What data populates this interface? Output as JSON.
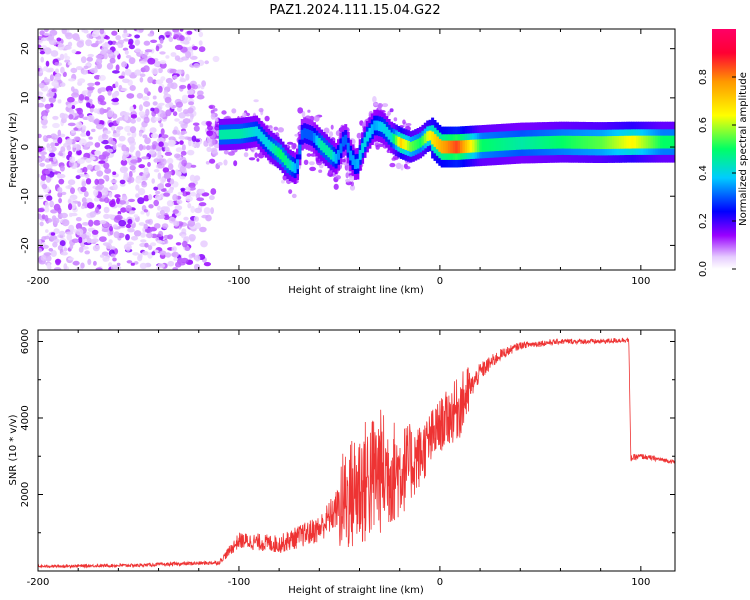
{
  "title": "PAZ1.2024.111.15.04.G22",
  "chart_data": [
    {
      "type": "heatmap",
      "xlabel": "Height of straight line (km)",
      "ylabel": "Frequency (Hz)",
      "xlim": [
        -200,
        117
      ],
      "ylim": [
        -25,
        24
      ],
      "x_ticks": [
        -200,
        -100,
        0,
        100
      ],
      "x_tick_labels": [
        "-200",
        "-100",
        "0",
        "100"
      ],
      "y_ticks": [
        -20,
        -10,
        0,
        10,
        20
      ],
      "y_tick_labels": [
        "-20",
        "-10",
        "0",
        "10",
        "20"
      ],
      "colorbar": {
        "label": "Normalized spectral amplitude",
        "range": [
          0,
          1
        ],
        "ticks": [
          0.0,
          0.2,
          0.4,
          0.6,
          0.8
        ],
        "tick_labels": [
          "0.0",
          "0.2",
          "0.4",
          "0.6",
          "0.8"
        ],
        "colormap": [
          "#ffffff",
          "#e6ccff",
          "#9900ff",
          "#0000ff",
          "#00ccff",
          "#00ff66",
          "#ffff00",
          "#ff9900",
          "#ff0033",
          "#ff0066"
        ]
      },
      "ridge": [
        {
          "x": -110,
          "y": 2.5,
          "amp": 0.45
        },
        {
          "x": -100,
          "y": 2.7,
          "amp": 0.45
        },
        {
          "x": -92,
          "y": 3.2,
          "amp": 0.4
        },
        {
          "x": -86,
          "y": 0.5,
          "amp": 0.4
        },
        {
          "x": -80,
          "y": -1.5,
          "amp": 0.5
        },
        {
          "x": -76,
          "y": -3.5,
          "amp": 0.45
        },
        {
          "x": -72,
          "y": -4.5,
          "amp": 0.35
        },
        {
          "x": -69,
          "y": 3.0,
          "amp": 0.3
        },
        {
          "x": -64,
          "y": 2.2,
          "amp": 0.3
        },
        {
          "x": -60,
          "y": 0.5,
          "amp": 0.45
        },
        {
          "x": -55,
          "y": -1.5,
          "amp": 0.45
        },
        {
          "x": -52,
          "y": -2.5,
          "amp": 0.35
        },
        {
          "x": -48,
          "y": 2.0,
          "amp": 0.3
        },
        {
          "x": -45,
          "y": -2.0,
          "amp": 0.35
        },
        {
          "x": -42,
          "y": -4.0,
          "amp": 0.35
        },
        {
          "x": -40,
          "y": -1.0,
          "amp": 0.4
        },
        {
          "x": -37,
          "y": 2.0,
          "amp": 0.4
        },
        {
          "x": -33,
          "y": 4.5,
          "amp": 0.35
        },
        {
          "x": -29,
          "y": 4.0,
          "amp": 0.4
        },
        {
          "x": -25,
          "y": 2.0,
          "amp": 0.4
        },
        {
          "x": -20,
          "y": 0.8,
          "amp": 0.7
        },
        {
          "x": -15,
          "y": 0.0,
          "amp": 0.55
        },
        {
          "x": -10,
          "y": 1.0,
          "amp": 0.5
        },
        {
          "x": -6,
          "y": 2.5,
          "amp": 0.65
        },
        {
          "x": 0,
          "y": 0.0,
          "amp": 0.75
        },
        {
          "x": 8,
          "y": 0.0,
          "amp": 0.85
        },
        {
          "x": 20,
          "y": 0.3,
          "amp": 0.5
        },
        {
          "x": 40,
          "y": 0.8,
          "amp": 0.45
        },
        {
          "x": 60,
          "y": 1.0,
          "amp": 0.5
        },
        {
          "x": 80,
          "y": 0.9,
          "amp": 0.55
        },
        {
          "x": 95,
          "y": 1.0,
          "amp": 0.65
        },
        {
          "x": 110,
          "y": 1.0,
          "amp": 0.5
        },
        {
          "x": 117,
          "y": 1.0,
          "amp": 0.5
        }
      ],
      "noise_region_x": [
        -200,
        -110
      ],
      "noise_region_y": [
        -25,
        24
      ]
    },
    {
      "type": "line",
      "xlabel": "Height of straight line (km)",
      "ylabel": "SNR (10 * v/v)",
      "xlim": [
        -200,
        117
      ],
      "ylim": [
        0,
        6300
      ],
      "x_ticks": [
        -200,
        -100,
        0,
        100
      ],
      "x_tick_labels": [
        "-200",
        "-100",
        "0",
        "100"
      ],
      "y_ticks": [
        2000,
        4000,
        6000
      ],
      "y_tick_labels": [
        "2000",
        "4000",
        "6000"
      ],
      "color": "#ee3333",
      "envelope": {
        "x": [
          -200,
          -150,
          -110,
          -100,
          -80,
          -60,
          -50,
          -40,
          -30,
          -20,
          -10,
          0,
          10,
          20,
          30,
          40,
          60,
          80,
          94,
          95,
          100,
          117
        ],
        "mean": [
          120,
          150,
          220,
          800,
          700,
          1100,
          1700,
          2200,
          2600,
          2600,
          3000,
          3800,
          4300,
          5200,
          5650,
          5900,
          6000,
          6000,
          6050,
          2950,
          3000,
          2850
        ],
        "noise": [
          60,
          70,
          90,
          350,
          400,
          600,
          900,
          1200,
          1200,
          900,
          600,
          500,
          600,
          400,
          250,
          150,
          120,
          110,
          120,
          150,
          120,
          80
        ]
      }
    }
  ]
}
